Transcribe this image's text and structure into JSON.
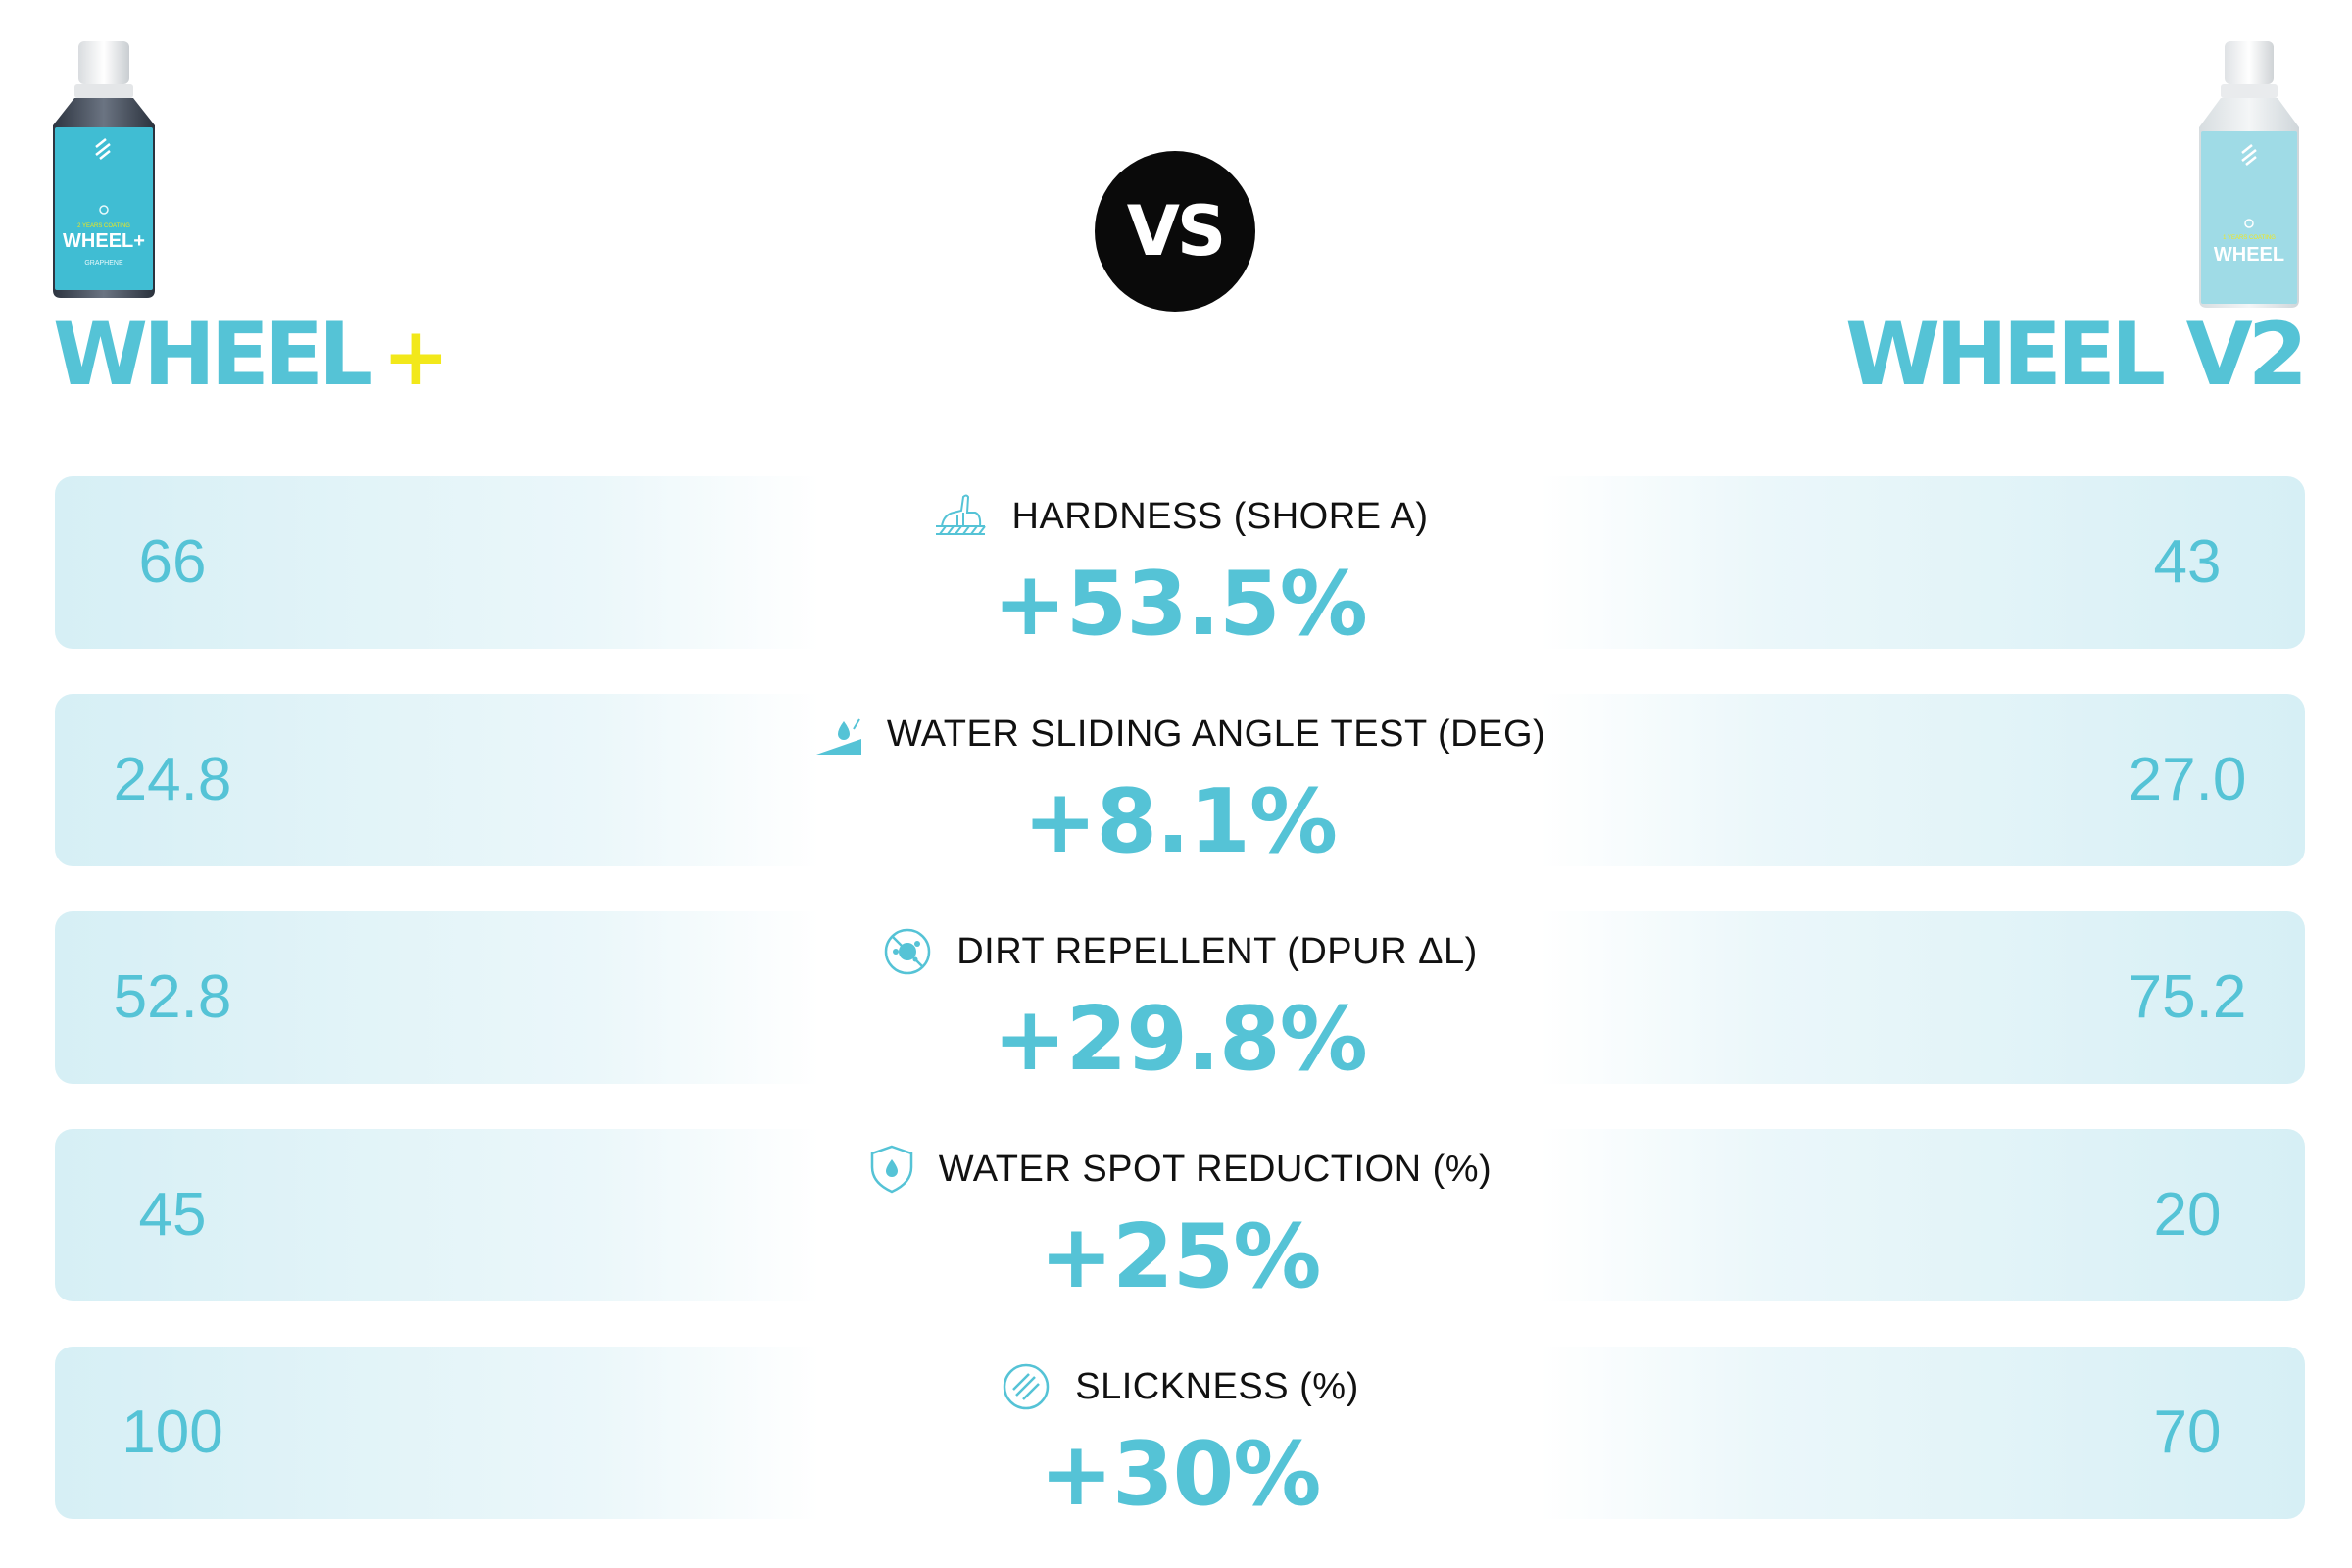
{
  "products": {
    "left": {
      "name": "WHEEL",
      "plus": "+",
      "bottle_label": {
        "top": "2 YEARS COATING",
        "name": "WHEEL+",
        "sub": "GRAPHENE"
      },
      "colors": {
        "label": "#40bdd3",
        "plus": "#f2e81a",
        "name": "#55c3d6"
      }
    },
    "right": {
      "name": "WHEEL V2",
      "bottle_label": {
        "top": "1 YEARS COATING",
        "name": "WHEEL"
      },
      "colors": {
        "label": "#9fdbe6",
        "name": "#55c3d6"
      }
    }
  },
  "vs_label": "VS",
  "metrics": [
    {
      "icon": "hardness-icon",
      "label": "HARDNESS (SHORE A)",
      "left": "66",
      "right": "43",
      "change": "+53.5%"
    },
    {
      "icon": "water-sliding-icon",
      "label": "WATER SLIDING ANGLE TEST (DEG)",
      "left": "24.8",
      "right": "27.0",
      "change": "+8.1%"
    },
    {
      "icon": "dirt-repellent-icon",
      "label": "DIRT REPELLENT (DPUR ΔL)",
      "left": "52.8",
      "right": "75.2",
      "change": "+29.8%"
    },
    {
      "icon": "water-spot-shield-icon",
      "label": "WATER SPOT REDUCTION (%)",
      "left": "45",
      "right": "20",
      "change": "+25%"
    },
    {
      "icon": "slickness-icon",
      "label": "SLICKNESS (%)",
      "left": "100",
      "right": "70",
      "change": "+30%"
    }
  ],
  "accent_color": "#55c3d6"
}
